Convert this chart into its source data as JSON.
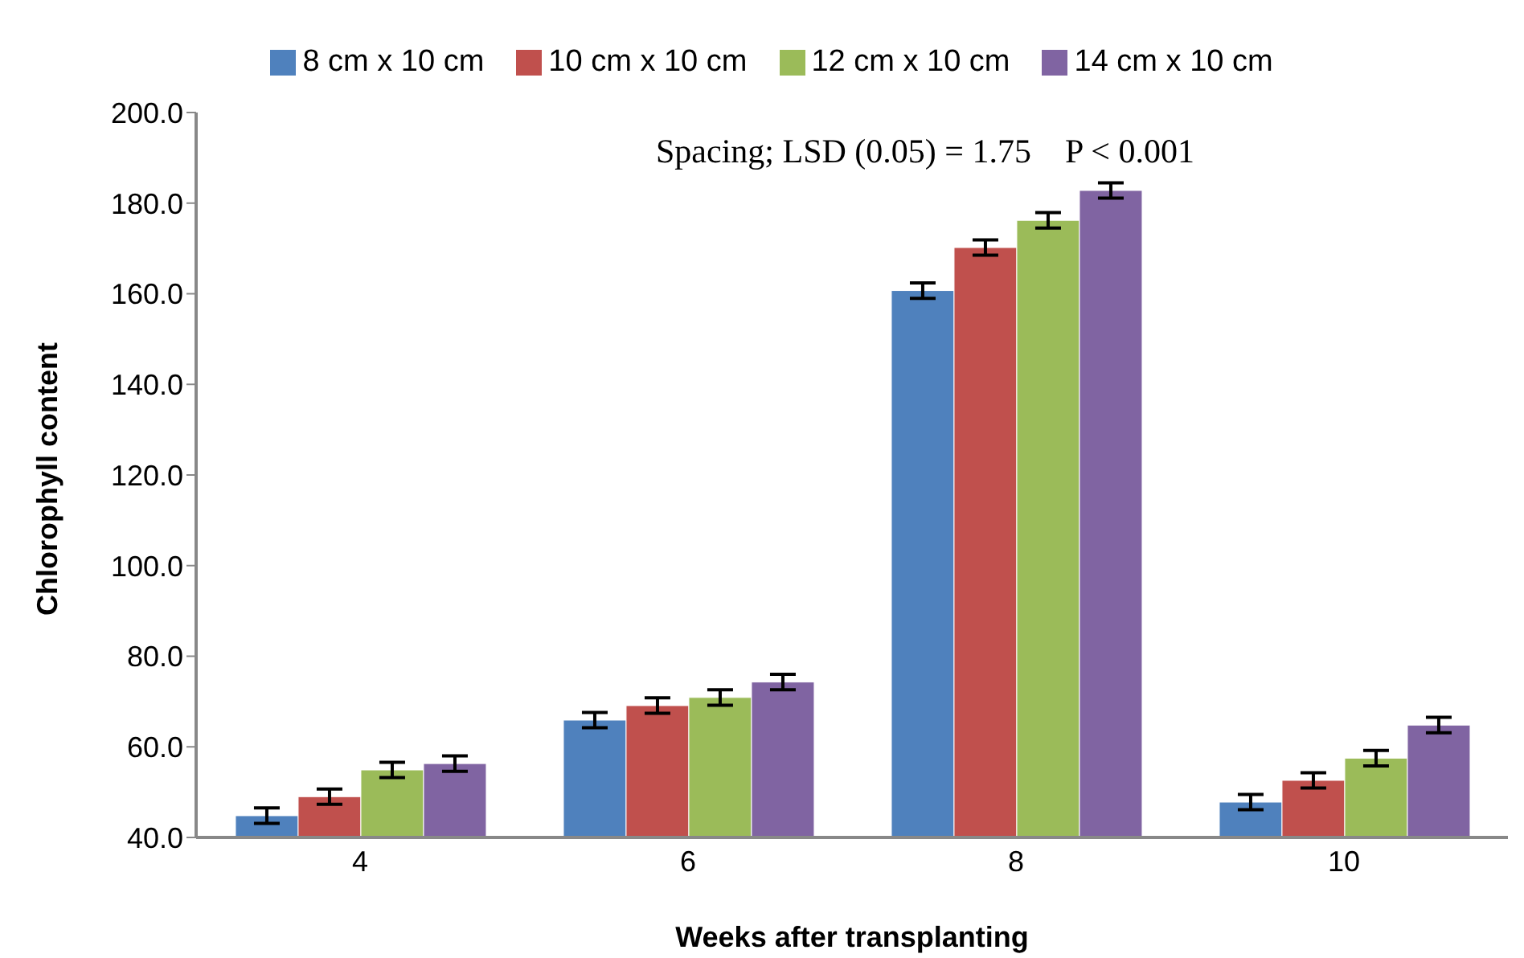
{
  "chart_data": {
    "type": "bar",
    "xlabel": "Weeks after transplanting",
    "ylabel": "Chlorophyll content",
    "categories": [
      "4",
      "6",
      "8",
      "10"
    ],
    "series": [
      {
        "name": "8 cm x 10 cm",
        "color": "#4f81bd",
        "values": [
          44.8,
          65.9,
          160.7,
          47.8
        ],
        "errors": [
          1.7,
          1.7,
          1.7,
          1.7
        ]
      },
      {
        "name": "10 cm x 10 cm",
        "color": "#c0504d",
        "values": [
          49.0,
          69.1,
          170.2,
          52.6
        ],
        "errors": [
          1.7,
          1.7,
          1.7,
          1.7
        ]
      },
      {
        "name": "12 cm x 10 cm",
        "color": "#9bbb59",
        "values": [
          54.9,
          70.9,
          176.2,
          57.5
        ],
        "errors": [
          1.7,
          1.7,
          1.7,
          1.7
        ]
      },
      {
        "name": "14 cm x 10 cm",
        "color": "#8064a2",
        "values": [
          56.3,
          74.3,
          182.8,
          64.8
        ],
        "errors": [
          1.7,
          1.7,
          1.7,
          1.7
        ]
      }
    ],
    "ylim": [
      40,
      200
    ],
    "yticks": [
      {
        "value": 40,
        "label": "40.0"
      },
      {
        "value": 60,
        "label": "60.0"
      },
      {
        "value": 80,
        "label": "80.0"
      },
      {
        "value": 100,
        "label": "100.0"
      },
      {
        "value": 120,
        "label": "120.0"
      },
      {
        "value": 140,
        "label": "140.0"
      },
      {
        "value": 160,
        "label": "160.0"
      },
      {
        "value": 180,
        "label": "180.0"
      },
      {
        "value": 200,
        "label": "200.0"
      }
    ],
    "annotations": [
      "Spacing; LSD (0.05) = 1.75    P < 0.001"
    ],
    "grid": false,
    "legend": "top"
  }
}
